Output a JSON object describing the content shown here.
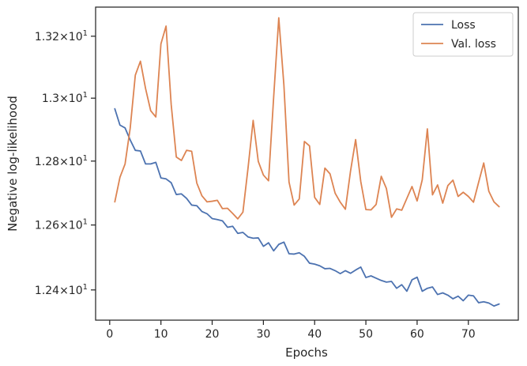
{
  "chart_data": {
    "type": "line",
    "title": "",
    "xlabel": "Epochs",
    "ylabel": "Negative log-likelihood",
    "xlim": [
      -2.75,
      79.75
    ],
    "ylim": [
      12.308,
      13.295
    ],
    "yscale": "log",
    "grid": false,
    "legend_position": "top-right",
    "x_ticks": [
      0,
      10,
      20,
      30,
      40,
      50,
      60,
      70
    ],
    "x_tick_labels": [
      "0",
      "10",
      "20",
      "30",
      "40",
      "50",
      "60",
      "70"
    ],
    "y_ticks": [
      12.4,
      12.6,
      12.8,
      13.0,
      13.2
    ],
    "y_tick_labels": [
      {
        "base": "1.24",
        "exp": "1"
      },
      {
        "base": "1.26",
        "exp": "1"
      },
      {
        "base": "1.28",
        "exp": "1"
      },
      {
        "base": "1.3",
        "exp": "1"
      },
      {
        "base": "1.32",
        "exp": "1"
      }
    ],
    "y_tick_mult": "×10",
    "x": [
      1,
      2,
      3,
      4,
      5,
      6,
      7,
      8,
      9,
      10,
      11,
      12,
      13,
      14,
      15,
      16,
      17,
      18,
      19,
      20,
      21,
      22,
      23,
      24,
      25,
      26,
      27,
      28,
      29,
      30,
      31,
      32,
      33,
      34,
      35,
      36,
      37,
      38,
      39,
      40,
      41,
      42,
      43,
      44,
      45,
      46,
      47,
      48,
      49,
      50,
      51,
      52,
      53,
      54,
      55,
      56,
      57,
      58,
      59,
      60,
      61,
      62,
      63,
      64,
      65,
      66,
      67,
      68,
      69,
      70,
      71,
      72,
      73,
      74,
      75,
      76
    ],
    "series": [
      {
        "name": "Loss",
        "color": "#4c72b0",
        "values": [
          12.966,
          12.914,
          12.905,
          12.867,
          12.834,
          12.832,
          12.791,
          12.791,
          12.796,
          12.747,
          12.744,
          12.732,
          12.695,
          12.697,
          12.683,
          12.662,
          12.66,
          12.642,
          12.635,
          12.62,
          12.617,
          12.613,
          12.593,
          12.596,
          12.574,
          12.577,
          12.563,
          12.559,
          12.56,
          12.534,
          12.545,
          12.52,
          12.54,
          12.547,
          12.511,
          12.51,
          12.514,
          12.503,
          12.482,
          12.479,
          12.474,
          12.465,
          12.466,
          12.459,
          12.45,
          12.459,
          12.451,
          12.461,
          12.47,
          12.438,
          12.443,
          12.436,
          12.429,
          12.424,
          12.426,
          12.405,
          12.416,
          12.396,
          12.431,
          12.439,
          12.396,
          12.405,
          12.409,
          12.386,
          12.391,
          12.384,
          12.373,
          12.381,
          12.367,
          12.384,
          12.382,
          12.361,
          12.364,
          12.36,
          12.351,
          12.357
        ]
      },
      {
        "name": "Val. loss",
        "color": "#dd8452",
        "values": [
          12.672,
          12.749,
          12.791,
          12.904,
          13.074,
          13.119,
          13.031,
          12.96,
          12.94,
          13.175,
          13.233,
          12.98,
          12.813,
          12.802,
          12.834,
          12.831,
          12.731,
          12.691,
          12.672,
          12.674,
          12.677,
          12.651,
          12.652,
          12.636,
          12.619,
          12.64,
          12.778,
          12.929,
          12.799,
          12.756,
          12.738,
          13.003,
          13.26,
          13.042,
          12.734,
          12.662,
          12.681,
          12.862,
          12.848,
          12.686,
          12.664,
          12.778,
          12.76,
          12.699,
          12.671,
          12.649,
          12.768,
          12.868,
          12.736,
          12.648,
          12.647,
          12.664,
          12.752,
          12.714,
          12.624,
          12.65,
          12.646,
          12.683,
          12.72,
          12.675,
          12.741,
          12.902,
          12.694,
          12.725,
          12.668,
          12.723,
          12.74,
          12.689,
          12.702,
          12.689,
          12.671,
          12.733,
          12.794,
          12.705,
          12.672,
          12.657
        ]
      }
    ]
  }
}
